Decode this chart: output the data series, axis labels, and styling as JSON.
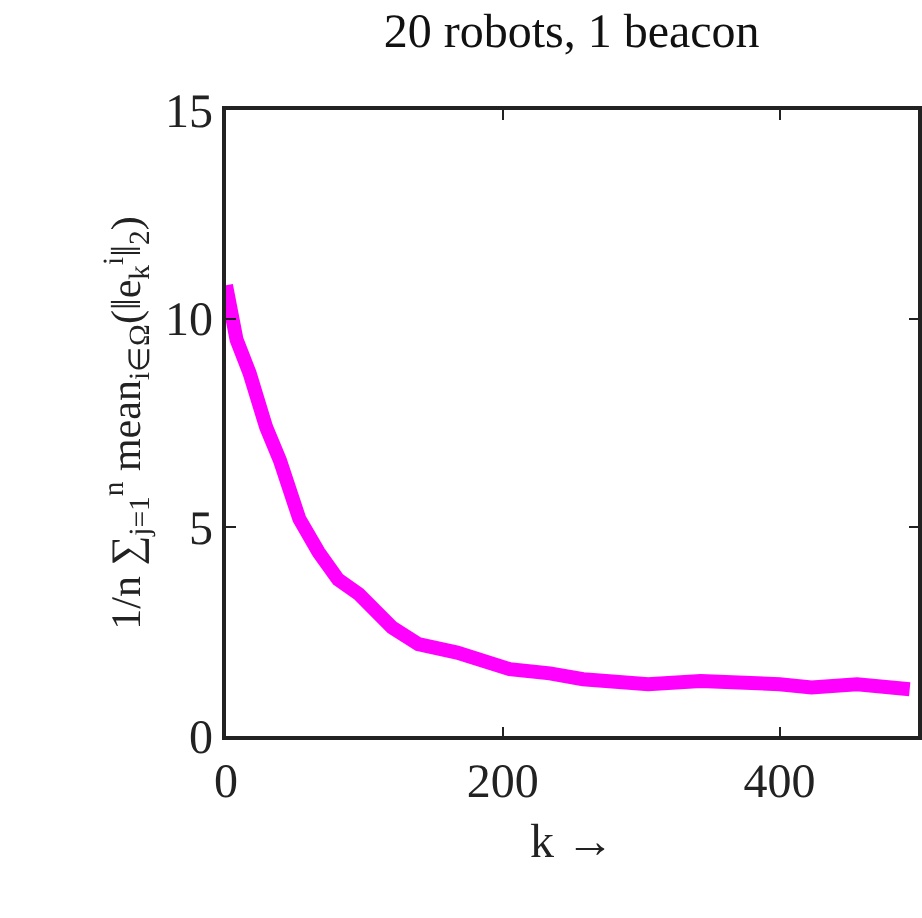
{
  "chart_data": {
    "type": "line",
    "title": "20 robots, 1 beacon",
    "xlabel": "k →",
    "ylabel": "1/n ∑$_{j=1}$$^{n}$ mean$_{i∈Ω}$(‖e$_{k}$$^{i}$‖$_{2}$)",
    "x": [
      0,
      7.6,
      17,
      29,
      39,
      53,
      67,
      81,
      96,
      120,
      139,
      167,
      205,
      234,
      258,
      305,
      343,
      400,
      423,
      456,
      494
    ],
    "series": [
      {
        "color": "#ff00ff",
        "values": [
          10.8,
          9.5,
          8.7,
          7.4,
          6.6,
          5.2,
          4.4,
          3.75,
          3.4,
          2.6,
          2.2,
          2.0,
          1.6,
          1.5,
          1.36,
          1.24,
          1.32,
          1.24,
          1.16,
          1.24,
          1.12
        ]
      }
    ],
    "xlim": [
      0,
      500
    ],
    "ylim": [
      0,
      15
    ],
    "xticks": [
      0,
      200,
      400
    ],
    "yticks": [
      0,
      5,
      10,
      15
    ],
    "legend": false,
    "marker": "none",
    "line_style": "solid"
  }
}
